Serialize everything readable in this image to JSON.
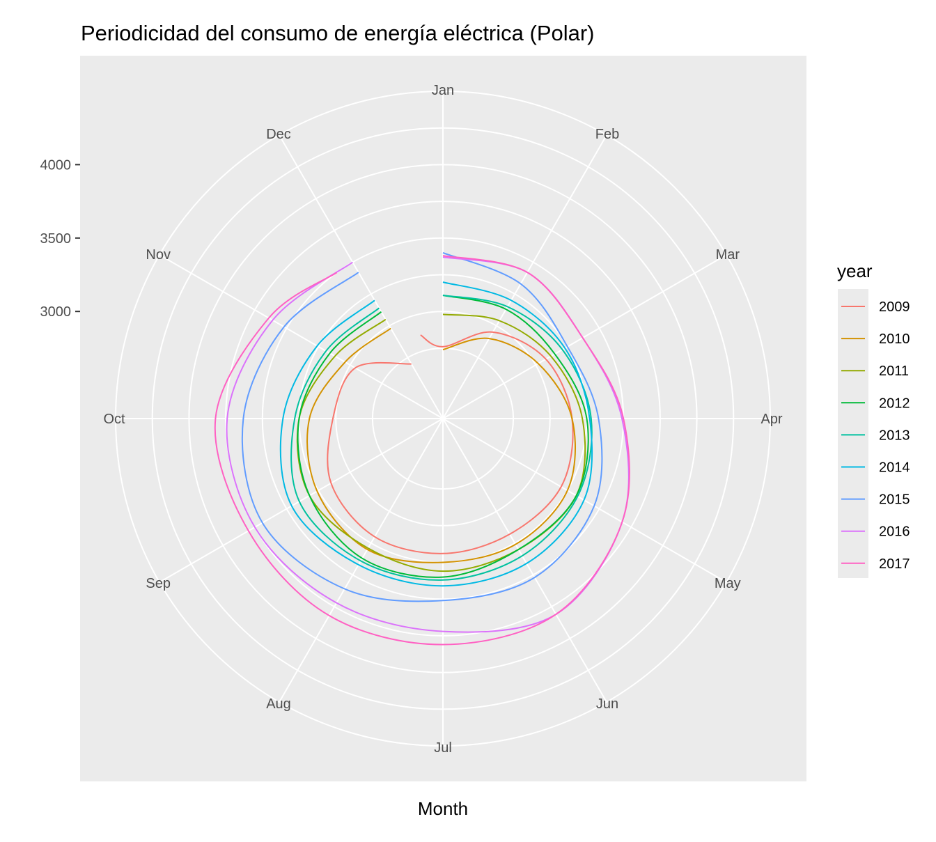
{
  "chart_data": {
    "type": "line",
    "coordinate_system": "polar",
    "title": "Periodicidad del consumo de energía eléctrica (Polar)",
    "xlabel": "Month",
    "ylabel": "",
    "months": [
      "Jan",
      "Feb",
      "Mar",
      "Apr",
      "May",
      "Jun",
      "Jul",
      "Aug",
      "Sep",
      "Oct",
      "Nov",
      "Dec"
    ],
    "y_ticks": [
      3000,
      3500,
      4000
    ],
    "y_tick_labels": [
      "3000",
      "3500",
      "4000"
    ],
    "ylim": [
      2650,
      4500
    ],
    "grid": true,
    "legend_title": "year",
    "legend_position": "right",
    "series": [
      {
        "name": "2009",
        "color": "#F8766D",
        "x": [
          0.5,
          1,
          2,
          3,
          4,
          5,
          6,
          7,
          8,
          9,
          10,
          11,
          12
        ],
        "values": [
          2860,
          2760,
          2950,
          3080,
          3150,
          3200,
          3180,
          3190,
          3200,
          3150,
          3020,
          2960,
          2700
        ]
      },
      {
        "name": "2010",
        "color": "#D39200",
        "x": [
          1,
          2,
          3,
          4,
          5,
          6,
          7,
          8,
          9,
          10,
          11,
          12
        ],
        "values": [
          2740,
          2900,
          3020,
          3150,
          3250,
          3260,
          3250,
          3300,
          3260,
          3180,
          3040,
          2980
        ]
      },
      {
        "name": "2011",
        "color": "#93AA00",
        "x": [
          1,
          2,
          3,
          4,
          5,
          6,
          7,
          8,
          9,
          10,
          11,
          12
        ],
        "values": [
          2980,
          3040,
          3120,
          3220,
          3320,
          3300,
          3310,
          3290,
          3320,
          3250,
          3120,
          3050
        ]
      },
      {
        "name": "2012",
        "color": "#00BA38",
        "x": [
          1,
          2,
          3,
          4,
          5,
          6,
          7,
          8,
          9,
          10,
          11,
          12
        ],
        "values": [
          3110,
          3130,
          3150,
          3250,
          3320,
          3300,
          3350,
          3370,
          3320,
          3250,
          3160,
          3110
        ]
      },
      {
        "name": "2013",
        "color": "#00C19F",
        "x": [
          1,
          2,
          3,
          4,
          5,
          6,
          7,
          8,
          9,
          10,
          11,
          12
        ],
        "values": [
          3110,
          3150,
          3210,
          3280,
          3330,
          3350,
          3370,
          3390,
          3400,
          3280,
          3190,
          3140
        ]
      },
      {
        "name": "2014",
        "color": "#00B9E3",
        "x": [
          1,
          2,
          3,
          4,
          5,
          6,
          7,
          8,
          9,
          10,
          11,
          12
        ],
        "values": [
          3200,
          3200,
          3230,
          3270,
          3380,
          3410,
          3410,
          3420,
          3460,
          3360,
          3260,
          3200
        ]
      },
      {
        "name": "2015",
        "color": "#619CFF",
        "x": [
          1,
          2,
          3,
          4,
          5,
          6,
          7,
          8,
          9,
          10,
          11,
          12
        ],
        "values": [
          3400,
          3330,
          3250,
          3330,
          3460,
          3520,
          3510,
          3610,
          3690,
          3630,
          3520,
          3420
        ]
      },
      {
        "name": "2016",
        "color": "#DB72FB",
        "x": [
          1,
          2,
          3,
          4,
          5,
          6,
          7,
          8,
          9,
          10,
          11,
          12
        ],
        "values": [
          3370,
          3420,
          3370,
          3490,
          3680,
          3810,
          3720,
          3720,
          3750,
          3740,
          3610,
          3500
        ]
      },
      {
        "name": "2017",
        "color": "#FF61C3",
        "x": [
          1,
          2,
          3,
          4,
          5,
          6,
          7,
          8,
          9,
          10,
          11,
          11.8
        ],
        "values": [
          3380,
          3420,
          3370,
          3500,
          3680,
          3810,
          3810,
          3820,
          3800,
          3820,
          3640,
          3500
        ]
      }
    ]
  }
}
